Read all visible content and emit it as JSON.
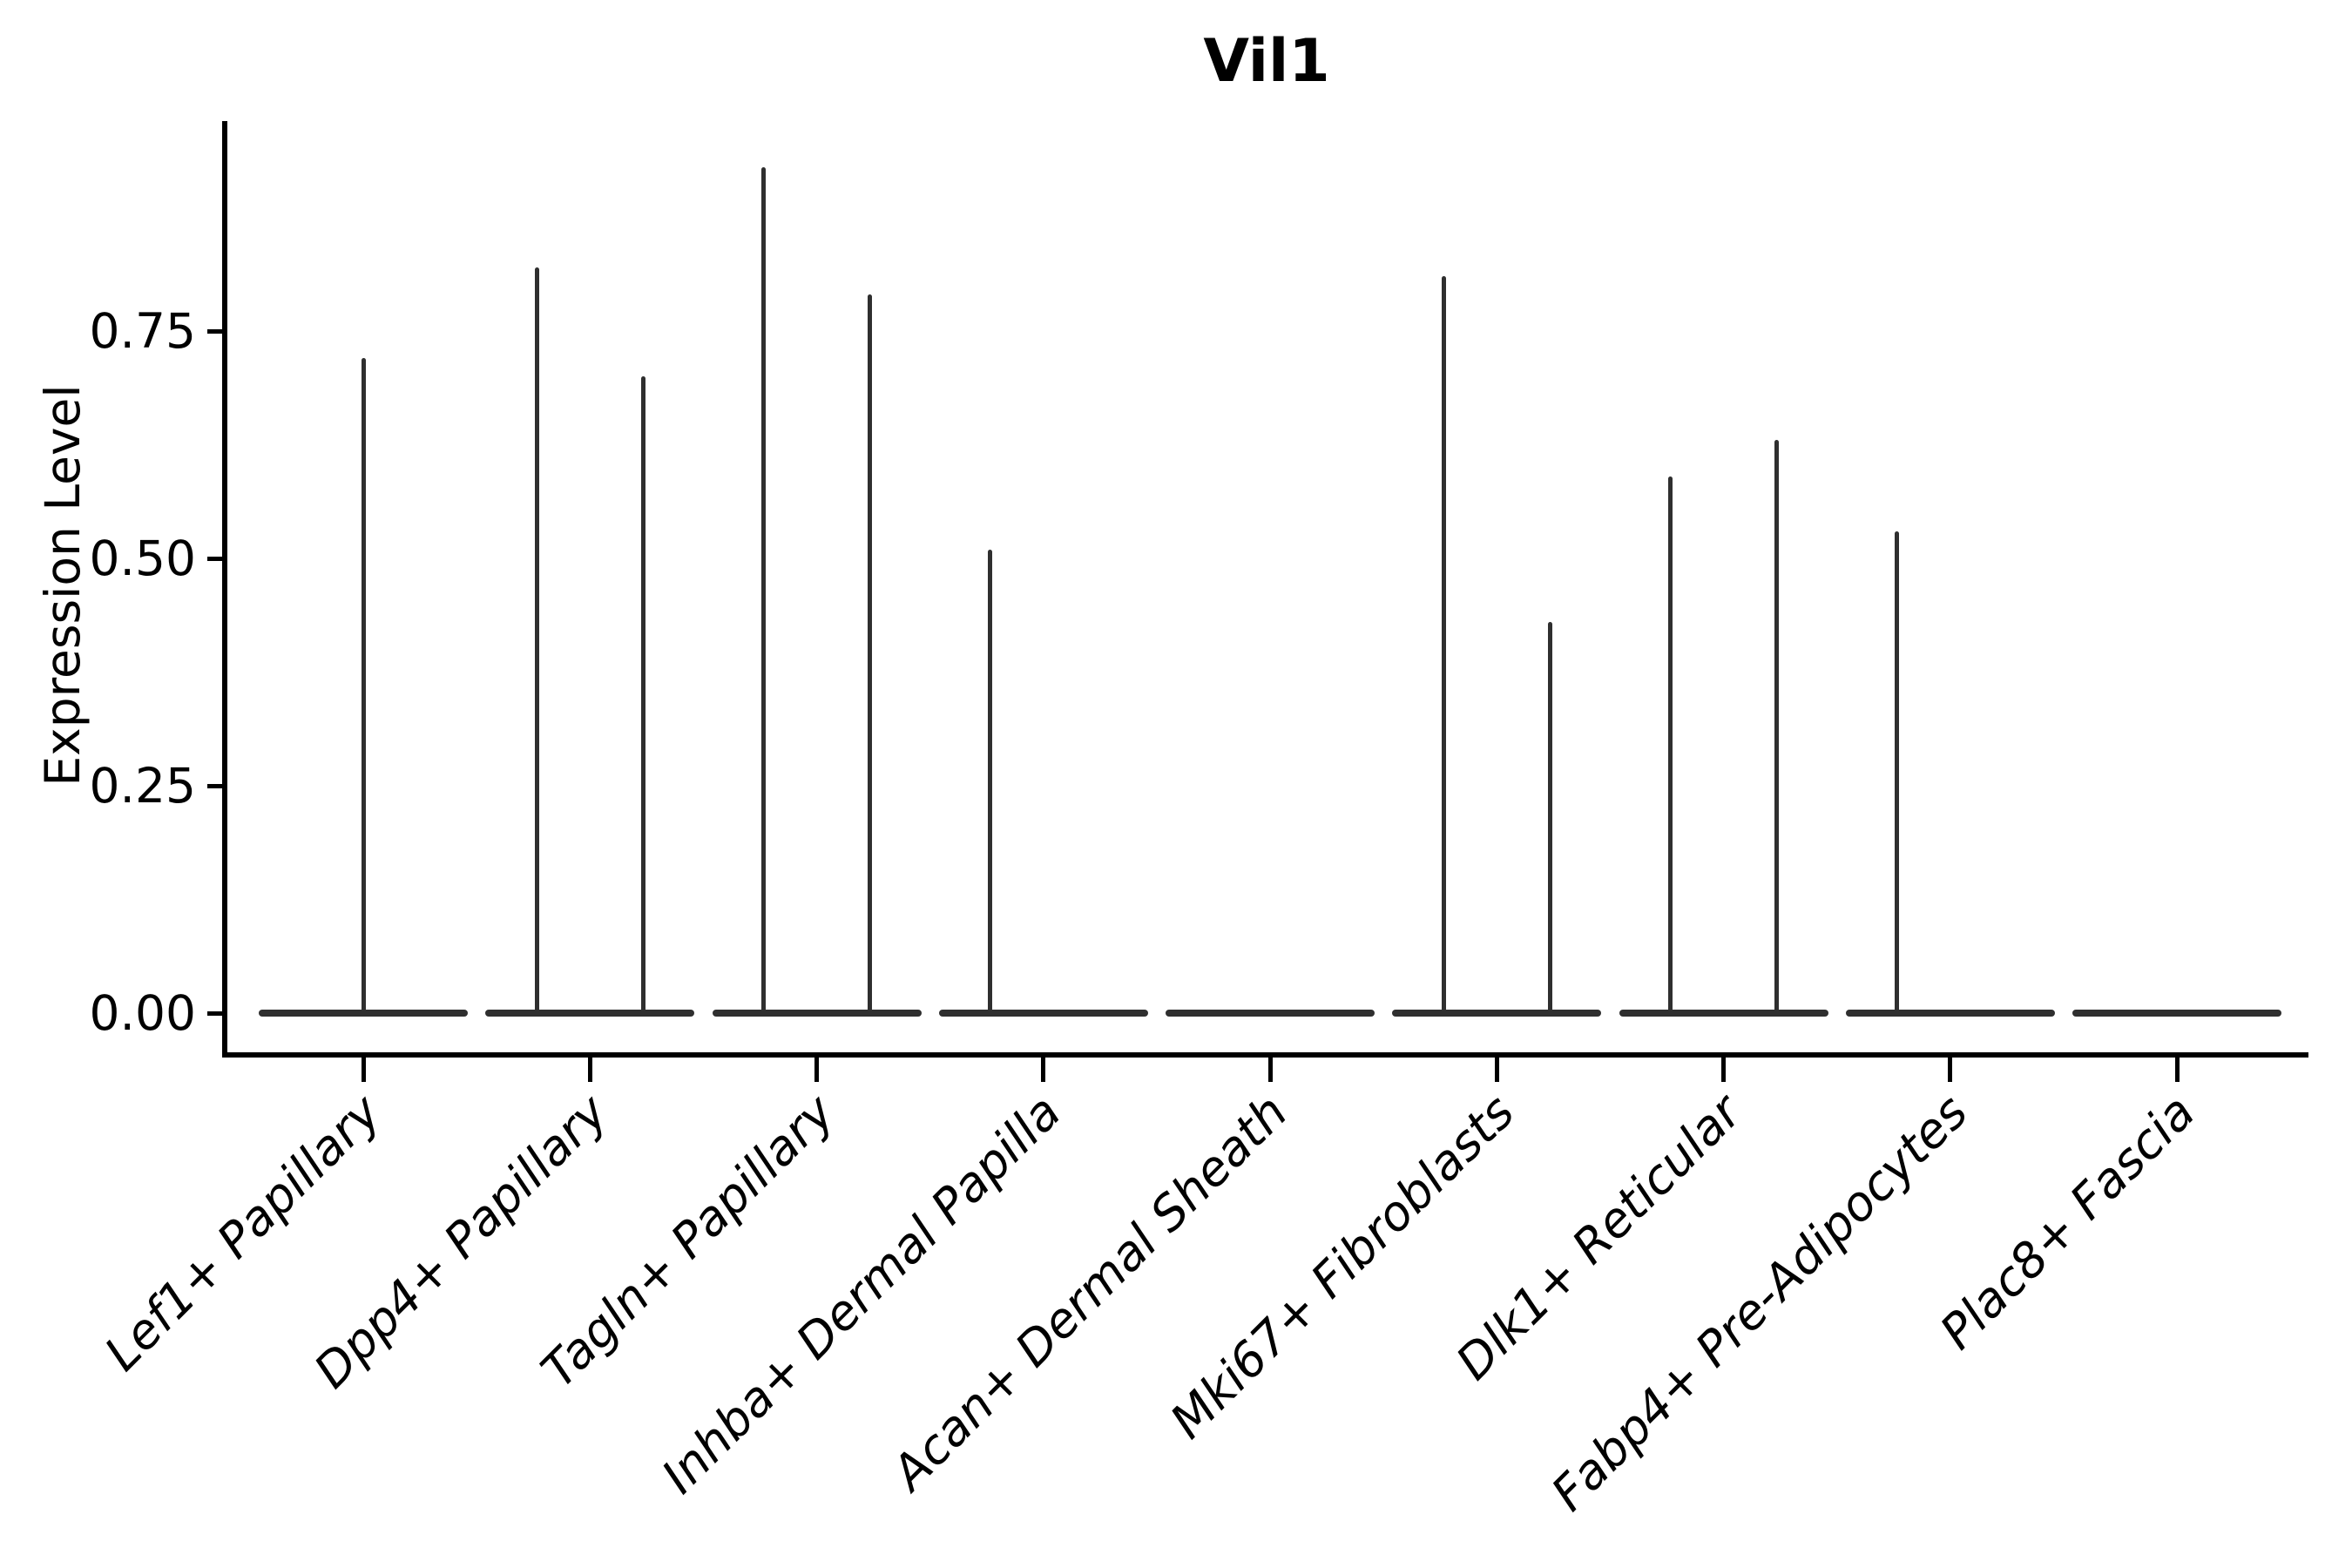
{
  "title": "Vil1",
  "y_axis": {
    "label": "Expression Level",
    "tick_labels": [
      "0.00",
      "0.25",
      "0.50",
      "0.75"
    ],
    "tick_values": [
      0,
      0.25,
      0.5,
      0.75
    ]
  },
  "x_axis": {
    "label": "",
    "tick_labels": [
      "Lef1+ Papillary",
      "Dpp4+ Papillary",
      "Tagln+ Papillary",
      "Inhba+ Dermal Papilla",
      "Acan+ Dermal Sheath",
      "Mki67+ Fibroblasts",
      "Dlk1+ Reticular",
      "Fabp4+ Pre-Adipocytes",
      "Plac8+ Fascia"
    ]
  },
  "colors": {
    "violin": "#2f2f2f",
    "axis": "#000000",
    "background": "#ffffff"
  },
  "chart_data": {
    "type": "violin",
    "title": "Vil1",
    "xlabel": "",
    "ylabel": "Expression Level",
    "ylim": [
      0,
      0.98
    ],
    "yticks": [
      0,
      0.25,
      0.5,
      0.75
    ],
    "ytick_labels": [
      "0.00",
      "0.25",
      "0.50",
      "0.75"
    ],
    "grid": false,
    "spines": [
      "left",
      "bottom"
    ],
    "legend": "none",
    "categories": [
      "Lef1+ Papillary",
      "Dpp4+ Papillary",
      "Tagln+ Papillary",
      "Inhba+ Dermal Papilla",
      "Acan+ Dermal Sheath",
      "Mki67+ Fibroblasts",
      "Dlk1+ Reticular",
      "Fabp4+ Pre-Adipocytes",
      "Plac8+ Fascia"
    ],
    "violins": [
      {
        "category": "Lef1+ Papillary",
        "baseline_value": 0.0,
        "spikes": [
          {
            "position": "center",
            "max": 0.72
          }
        ]
      },
      {
        "category": "Dpp4+ Papillary",
        "baseline_value": 0.0,
        "spikes": [
          {
            "position": "left",
            "max": 0.82
          },
          {
            "position": "right",
            "max": 0.7
          }
        ]
      },
      {
        "category": "Tagln+ Papillary",
        "baseline_value": 0.0,
        "spikes": [
          {
            "position": "left",
            "max": 0.93
          },
          {
            "position": "right",
            "max": 0.79
          }
        ]
      },
      {
        "category": "Inhba+ Dermal Papilla",
        "baseline_value": 0.0,
        "spikes": [
          {
            "position": "left",
            "max": 0.51
          }
        ]
      },
      {
        "category": "Acan+ Dermal Sheath",
        "baseline_value": 0.0,
        "spikes": []
      },
      {
        "category": "Mki67+ Fibroblasts",
        "baseline_value": 0.0,
        "spikes": [
          {
            "position": "left",
            "max": 0.81
          },
          {
            "position": "right",
            "max": 0.43
          }
        ]
      },
      {
        "category": "Dlk1+ Reticular",
        "baseline_value": 0.0,
        "spikes": [
          {
            "position": "left",
            "max": 0.59
          },
          {
            "position": "right",
            "max": 0.63
          }
        ]
      },
      {
        "category": "Fabp4+ Pre-Adipocytes",
        "baseline_value": 0.0,
        "spikes": [
          {
            "position": "left",
            "max": 0.53
          }
        ]
      },
      {
        "category": "Plac8+ Fascia",
        "baseline_value": 0.0,
        "spikes": []
      }
    ]
  }
}
